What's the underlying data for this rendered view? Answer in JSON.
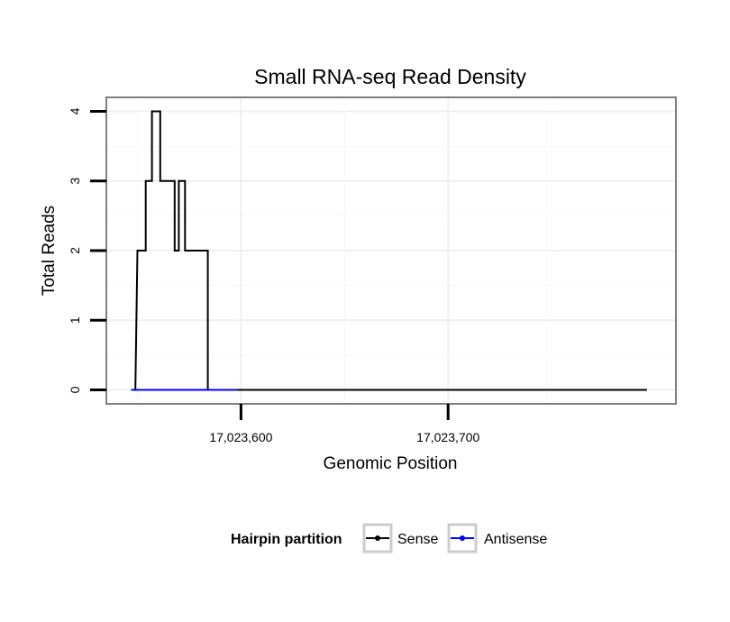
{
  "chart_data": {
    "type": "line",
    "title": "Small RNA-seq Read Density",
    "xlabel": "Genomic Position",
    "ylabel": "Total Reads",
    "xlim": [
      17023535,
      17023810
    ],
    "ylim": [
      -0.2,
      4.2
    ],
    "xticks": [
      17023600,
      17023700
    ],
    "xtick_labels": [
      "17,023,600",
      "17,023,700"
    ],
    "yticks": [
      0,
      1,
      2,
      3,
      4
    ],
    "ytick_labels": [
      "0",
      "1",
      "2",
      "3",
      "4"
    ],
    "grid": true,
    "legend_position": "bottom",
    "legend_title": "Hairpin partition",
    "series": [
      {
        "name": "Sense",
        "color": "#000000",
        "x": [
          17023547,
          17023549,
          17023550,
          17023554,
          17023554,
          17023557,
          17023557,
          17023561,
          17023561,
          17023568,
          17023568,
          17023569,
          17023569,
          17023570,
          17023570,
          17023573,
          17023573,
          17023577,
          17023577,
          17023584,
          17023584,
          17023585,
          17023585,
          17023796
        ],
        "y": [
          0,
          0,
          2,
          2,
          3,
          3,
          4,
          4,
          3,
          3,
          2,
          2,
          2,
          2,
          3,
          3,
          2,
          2,
          2,
          2,
          0,
          0,
          0,
          0
        ]
      },
      {
        "name": "Antisense",
        "color": "#0000ff",
        "x": [
          17023547,
          17023598
        ],
        "y": [
          0,
          0
        ]
      }
    ]
  }
}
